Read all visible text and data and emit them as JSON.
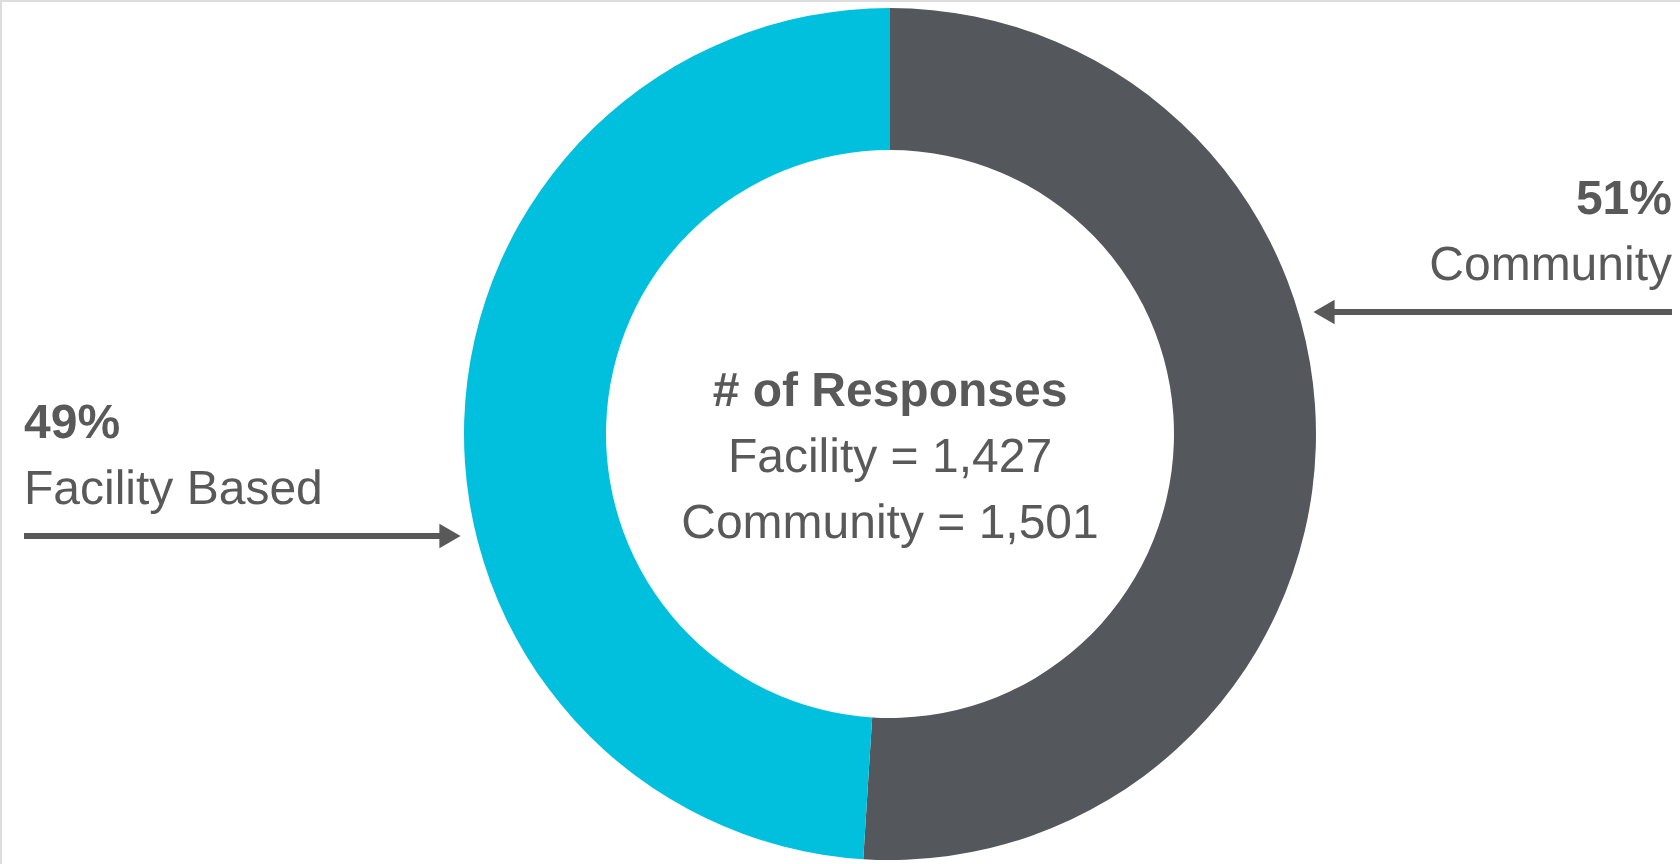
{
  "chart_data": {
    "type": "donut",
    "categories": [
      "Community",
      "Facility Based"
    ],
    "values": [
      51,
      49
    ],
    "colors": [
      "#54575c",
      "#00c0de"
    ],
    "value_labels": [
      "51%",
      "49%"
    ],
    "annotations": [
      "# of Responses",
      "Facility = 1,427",
      "Community = 1,501"
    ]
  }
}
